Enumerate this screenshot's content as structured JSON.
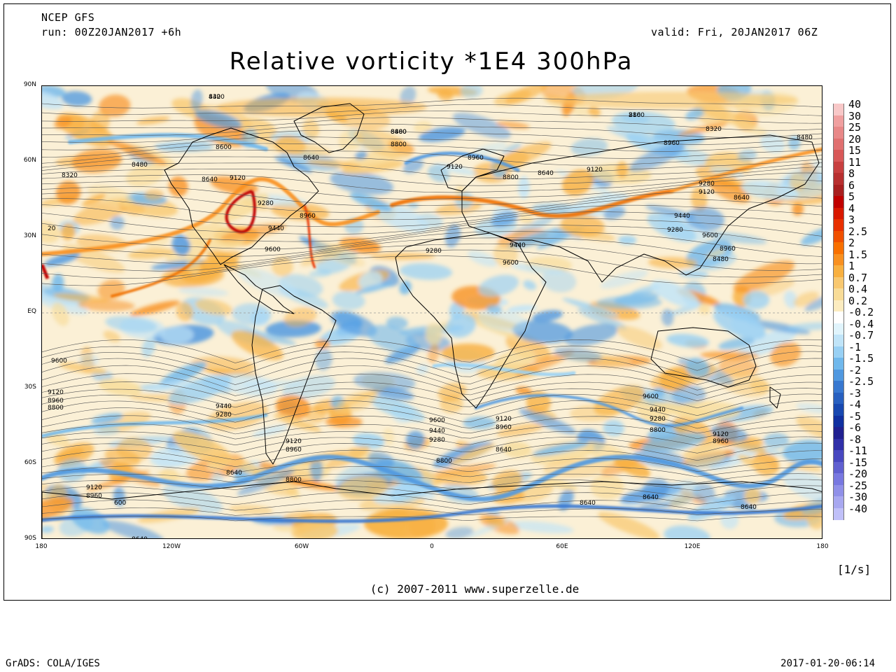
{
  "header": {
    "model": "NCEP GFS",
    "run": "run: 00Z20JAN2017 +6h",
    "valid": "valid: Fri, 20JAN2017 06Z"
  },
  "title": "Relative vorticity *1E4 300hPa",
  "map": {
    "lat_labels": [
      "90N",
      "60N",
      "30N",
      "EQ",
      "30S",
      "60S",
      "90S"
    ],
    "lon_labels": [
      "180",
      "120W",
      "60W",
      "0",
      "60E",
      "120E",
      "180"
    ],
    "contour_labels": [
      "8320",
      "8160",
      "8480",
      "8320",
      "8480",
      "8800",
      "8960",
      "8320",
      "8600",
      "8640",
      "8480",
      "8640",
      "9120",
      "8960",
      "9120",
      "8640",
      "8800",
      "9280",
      "8960",
      "9440",
      "9600",
      "9120",
      "9280",
      "9440",
      "9600",
      "8960",
      "9280",
      "9120",
      "8640",
      "8480",
      "9280",
      "9440",
      "9600",
      "20",
      "9600",
      "9440",
      "9280",
      "9120",
      "8960",
      "9600",
      "9440",
      "9280",
      "9120",
      "8960",
      "8640",
      "8800",
      "9120",
      "8960",
      "9600",
      "9440",
      "9280",
      "8800",
      "9120",
      "8960",
      "8640",
      "8800",
      "8640",
      "8640",
      "8640",
      "8640",
      "9120",
      "8960",
      "8800",
      "600",
      "440",
      "280",
      "8800"
    ]
  },
  "colorbar": {
    "labels": [
      "40",
      "30",
      "25",
      "20",
      "15",
      "11",
      "8",
      "6",
      "5",
      "4",
      "3",
      "2.5",
      "2",
      "1.5",
      "1",
      "0.7",
      "0.4",
      "0.2",
      "-0.2",
      "-0.4",
      "-0.7",
      "-1",
      "-1.5",
      "-2",
      "-2.5",
      "-3",
      "-4",
      "-5",
      "-6",
      "-8",
      "-11",
      "-15",
      "-20",
      "-25",
      "-30",
      "-40"
    ],
    "colors": [
      "#f8c8c8",
      "#f0a0a0",
      "#e88888",
      "#e07070",
      "#d85858",
      "#c84040",
      "#b83030",
      "#a82020",
      "#c00000",
      "#d81800",
      "#e83000",
      "#f05000",
      "#f87000",
      "#f89020",
      "#f8b040",
      "#f8c870",
      "#f8dc98",
      "#fcecc0",
      "#ffffff",
      "#e0f4fc",
      "#c0e4f8",
      "#98d0f4",
      "#70b8ec",
      "#5098e0",
      "#3878d0",
      "#2860c0",
      "#1848b0",
      "#1030a0",
      "#202090",
      "#3030a8",
      "#4848c0",
      "#6060d0",
      "#7878e0",
      "#9090e8",
      "#a8a8f0",
      "#c0c0f8"
    ],
    "units": "[1/s]"
  },
  "copyright": "(c) 2007-2011 www.superzelle.de",
  "footer": {
    "left": "GrADS: COLA/IGES",
    "right": "2017-01-20-06:14"
  }
}
